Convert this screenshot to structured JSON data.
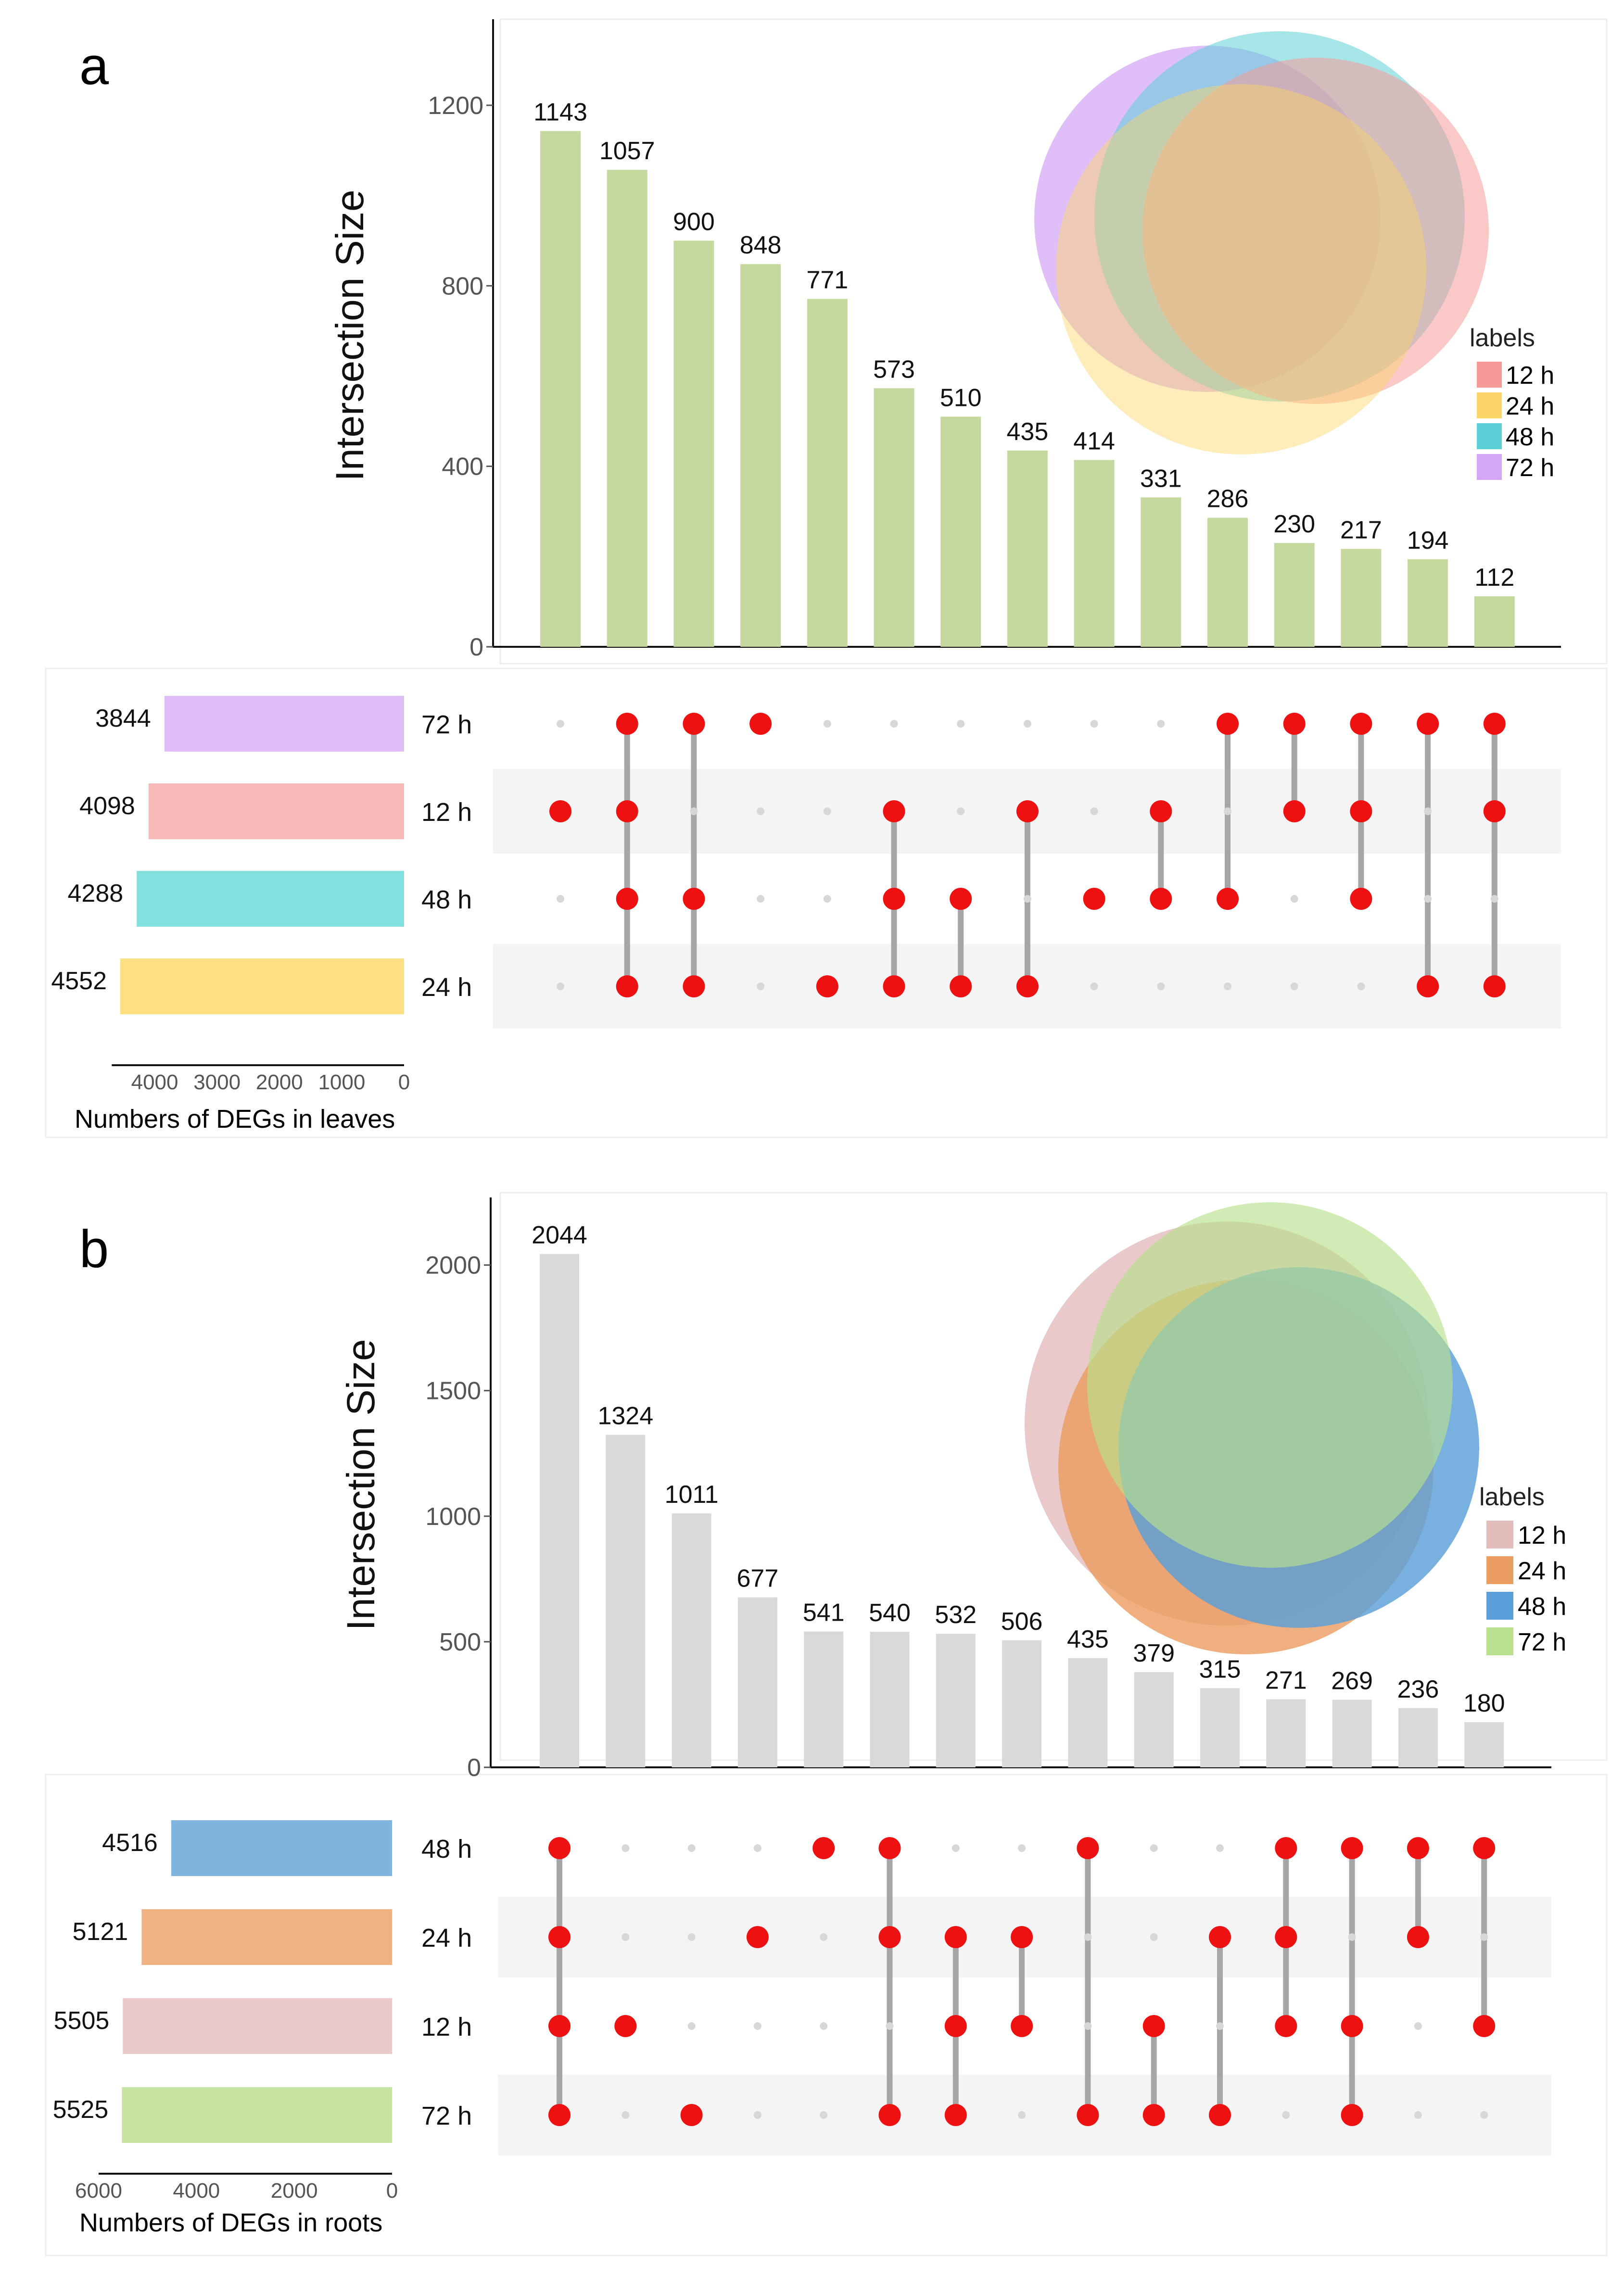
{
  "figure": {
    "panel_a_label": "a",
    "panel_b_label": "b"
  },
  "chart_data": [
    {
      "type": "upset",
      "panel": "a",
      "ylabel": "Intersection Size",
      "ylim": [
        0,
        1380
      ],
      "yticks": [
        0,
        400,
        800,
        1200
      ],
      "bar_color": "#c5d89e",
      "intersection_values": [
        1143,
        1057,
        900,
        848,
        771,
        573,
        510,
        435,
        414,
        331,
        286,
        230,
        217,
        194,
        112
      ],
      "sets": [
        {
          "label": "72 h",
          "size": 3844,
          "color": "#e0bff9"
        },
        {
          "label": "12 h",
          "size": 4098,
          "color": "#f9b8b8"
        },
        {
          "label": "48 h",
          "size": 4288,
          "color": "#82e0df"
        },
        {
          "label": "24 h",
          "size": 4552,
          "color": "#fedf81"
        }
      ],
      "membership": [
        [
          "12 h"
        ],
        [
          "72 h",
          "12 h",
          "48 h",
          "24 h"
        ],
        [
          "72 h",
          "48 h",
          "24 h"
        ],
        [
          "72 h"
        ],
        [
          "24 h"
        ],
        [
          "12 h",
          "48 h",
          "24 h"
        ],
        [
          "48 h",
          "24 h"
        ],
        [
          "12 h",
          "24 h"
        ],
        [
          "48 h"
        ],
        [
          "12 h",
          "48 h"
        ],
        [
          "72 h",
          "48 h"
        ],
        [
          "72 h",
          "12 h"
        ],
        [
          "72 h",
          "12 h",
          "48 h"
        ],
        [
          "72 h",
          "24 h"
        ],
        [
          "72 h",
          "12 h",
          "24 h"
        ]
      ],
      "set_axis_ticks": [
        4000,
        3000,
        2000,
        1000,
        0
      ],
      "set_axis_max": 4552,
      "set_axis_label": "Numbers of DEGs in leaves",
      "venn": {
        "legend_title": "labels",
        "entries": [
          {
            "label": "12 h",
            "color": "#f59a98"
          },
          {
            "label": "24 h",
            "color": "#fcd467"
          },
          {
            "label": "48 h",
            "color": "#5ccfd6"
          },
          {
            "label": "72 h",
            "color": "#d4a6f5"
          }
        ]
      }
    },
    {
      "type": "upset",
      "panel": "b",
      "ylabel": "Intersection Size",
      "ylim": [
        0,
        2250
      ],
      "yticks": [
        0,
        500,
        1000,
        1500,
        2000
      ],
      "bar_color": "#d9d9d9",
      "intersection_values": [
        2044,
        1324,
        1011,
        677,
        541,
        540,
        532,
        506,
        435,
        379,
        315,
        271,
        269,
        236,
        180
      ],
      "sets": [
        {
          "label": "48 h",
          "size": 4516,
          "color": "#7fb4dc"
        },
        {
          "label": "24 h",
          "size": 5121,
          "color": "#f0b282"
        },
        {
          "label": "12 h",
          "size": 5505,
          "color": "#ebc9c9"
        },
        {
          "label": "72 h",
          "size": 5525,
          "color": "#c8e4a2"
        }
      ],
      "membership": [
        [
          "48 h",
          "24 h",
          "12 h",
          "72 h"
        ],
        [
          "12 h"
        ],
        [
          "72 h"
        ],
        [
          "24 h"
        ],
        [
          "48 h"
        ],
        [
          "48 h",
          "24 h",
          "72 h"
        ],
        [
          "24 h",
          "12 h",
          "72 h"
        ],
        [
          "24 h",
          "12 h"
        ],
        [
          "48 h",
          "72 h"
        ],
        [
          "12 h",
          "72 h"
        ],
        [
          "24 h",
          "72 h"
        ],
        [
          "48 h",
          "24 h",
          "12 h"
        ],
        [
          "48 h",
          "12 h",
          "72 h"
        ],
        [
          "48 h",
          "24 h"
        ],
        [
          "48 h",
          "12 h"
        ]
      ],
      "set_axis_ticks": [
        6000,
        4000,
        2000,
        0
      ],
      "set_axis_max": 6000,
      "set_axis_label": "Numbers of DEGs in roots",
      "venn": {
        "legend_title": "labels",
        "entries": [
          {
            "label": "12 h",
            "color": "#e3bcbc"
          },
          {
            "label": "24 h",
            "color": "#ec9d62"
          },
          {
            "label": "48 h",
            "color": "#5a9fd8"
          },
          {
            "label": "72 h",
            "color": "#b8e08e"
          }
        ]
      }
    }
  ]
}
